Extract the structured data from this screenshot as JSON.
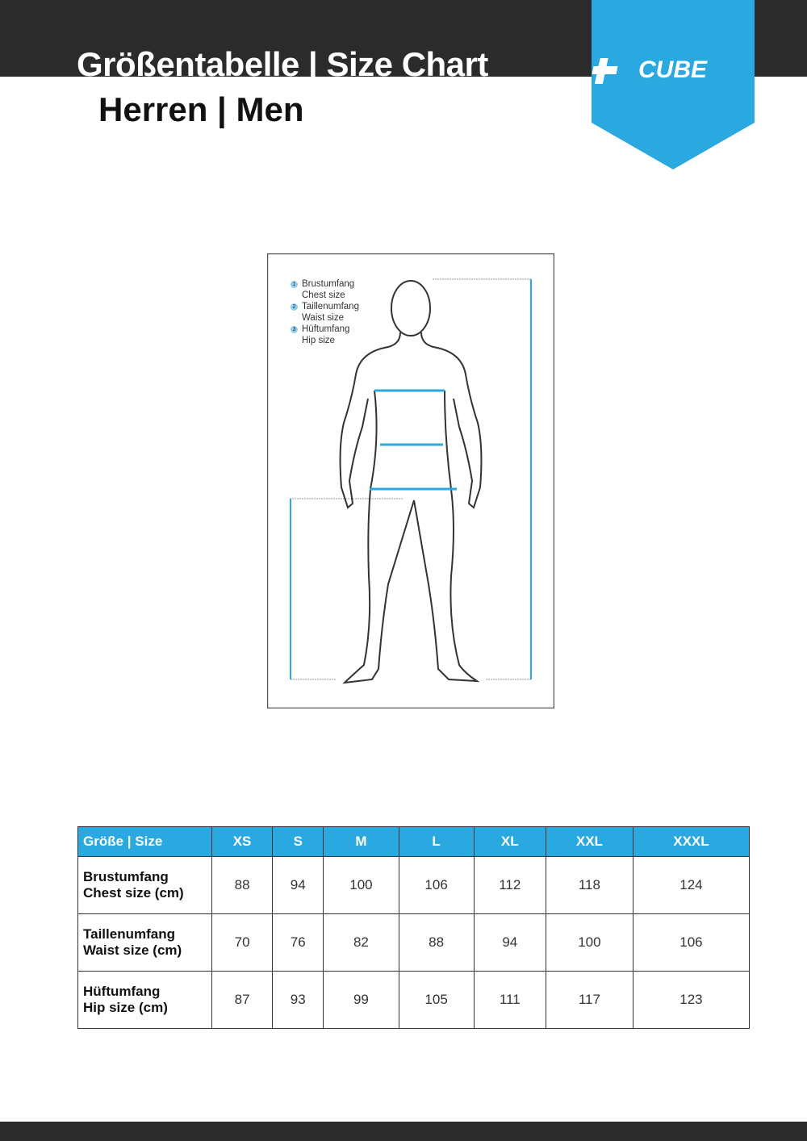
{
  "header": {
    "title": "Größentabelle | Size Chart",
    "subtitle": "Herren | Men",
    "logo_text": "CUBE",
    "brand_color": "#2aa8e0",
    "bar_color": "#2b2b2b"
  },
  "legend": [
    {
      "num": "1",
      "de": "Brustumfang",
      "en": "Chest size"
    },
    {
      "num": "2",
      "de": "Taillenumfang",
      "en": "Waist size"
    },
    {
      "num": "3",
      "de": "Hüftumfang",
      "en": "Hip size"
    }
  ],
  "table": {
    "corner": "Größe | Size",
    "sizes": [
      "XS",
      "S",
      "M",
      "L",
      "XL",
      "XXL",
      "XXXL"
    ],
    "rows": [
      {
        "de": "Brustumfang",
        "en": "Chest size (cm)",
        "values": [
          "88",
          "94",
          "100",
          "106",
          "112",
          "118",
          "124"
        ]
      },
      {
        "de": "Taillenumfang",
        "en": "Waist size (cm)",
        "values": [
          "70",
          "76",
          "82",
          "88",
          "94",
          "100",
          "106"
        ]
      },
      {
        "de": "Hüftumfang",
        "en": "Hip size (cm)",
        "values": [
          "87",
          "93",
          "99",
          "105",
          "111",
          "117",
          "123"
        ]
      }
    ]
  }
}
